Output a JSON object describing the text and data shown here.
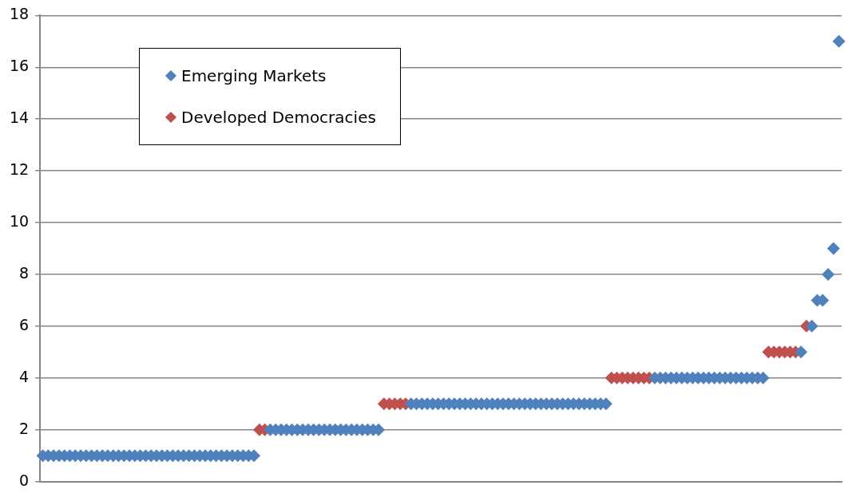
{
  "chart_data": {
    "type": "scatter",
    "categories": [
      null,
      null,
      null,
      null,
      null,
      null,
      null,
      null,
      null,
      null,
      null,
      null,
      null,
      null,
      null,
      null,
      null,
      null,
      null,
      null,
      null,
      null,
      null,
      null,
      null,
      null,
      null,
      null,
      null,
      null,
      null,
      null,
      null,
      null,
      null,
      null,
      null,
      null,
      null,
      null,
      null,
      null,
      null,
      null,
      null,
      null,
      null,
      null,
      null,
      null,
      null,
      null,
      null,
      null,
      null,
      null,
      null,
      null,
      null,
      null,
      null,
      null,
      null,
      null,
      null,
      null,
      null,
      null,
      null,
      null,
      null,
      null,
      null,
      null,
      null,
      null,
      null,
      null,
      null,
      null,
      null,
      null,
      null,
      null,
      null,
      null,
      null,
      null,
      null,
      null,
      null,
      null,
      null,
      null,
      null,
      null,
      null,
      null,
      null,
      null,
      null,
      null,
      null,
      null,
      null,
      null,
      null,
      null,
      null,
      null,
      null,
      null,
      null,
      null,
      null,
      null,
      null,
      null,
      null,
      null,
      null,
      null,
      null,
      null,
      null,
      null,
      null,
      null,
      null,
      null,
      null,
      null,
      null,
      null,
      null,
      null,
      null,
      null,
      null,
      null,
      null,
      null,
      null,
      null,
      null,
      null,
      null,
      null
    ],
    "series": [
      {
        "name": "Emerging Markets",
        "color": "#4f81bd",
        "values": [
          1,
          1,
          1,
          1,
          1,
          1,
          1,
          1,
          1,
          1,
          1,
          1,
          1,
          1,
          1,
          1,
          1,
          1,
          1,
          1,
          1,
          1,
          1,
          1,
          1,
          1,
          1,
          1,
          1,
          1,
          1,
          1,
          1,
          1,
          1,
          1,
          1,
          1,
          1,
          1,
          null,
          null,
          2,
          2,
          2,
          2,
          2,
          2,
          2,
          2,
          2,
          2,
          2,
          2,
          2,
          2,
          2,
          2,
          2,
          2,
          2,
          2,
          2,
          null,
          null,
          null,
          null,
          null,
          3,
          3,
          3,
          3,
          3,
          3,
          3,
          3,
          3,
          3,
          3,
          3,
          3,
          3,
          3,
          3,
          3,
          3,
          3,
          3,
          3,
          3,
          3,
          3,
          3,
          3,
          3,
          3,
          3,
          3,
          3,
          3,
          3,
          3,
          3,
          3,
          3,
          null,
          null,
          null,
          null,
          null,
          null,
          null,
          null,
          4,
          4,
          4,
          4,
          4,
          4,
          4,
          4,
          4,
          4,
          4,
          4,
          4,
          4,
          4,
          4,
          4,
          4,
          4,
          4,
          4,
          null,
          null,
          null,
          null,
          null,
          null,
          5,
          null,
          6,
          7,
          7,
          8,
          9,
          17
        ]
      },
      {
        "name": "Developed Democracies",
        "color": "#c0504d",
        "values": [
          null,
          null,
          null,
          null,
          null,
          null,
          null,
          null,
          null,
          null,
          null,
          null,
          null,
          null,
          null,
          null,
          null,
          null,
          null,
          null,
          null,
          null,
          null,
          null,
          null,
          null,
          null,
          null,
          null,
          null,
          null,
          null,
          null,
          null,
          null,
          null,
          null,
          null,
          null,
          null,
          2,
          2,
          null,
          null,
          null,
          null,
          null,
          null,
          null,
          null,
          null,
          null,
          null,
          null,
          null,
          null,
          null,
          null,
          null,
          null,
          null,
          null,
          null,
          3,
          3,
          3,
          3,
          3,
          null,
          null,
          null,
          null,
          null,
          null,
          null,
          null,
          null,
          null,
          null,
          null,
          null,
          null,
          null,
          null,
          null,
          null,
          null,
          null,
          null,
          null,
          null,
          null,
          null,
          null,
          null,
          null,
          null,
          null,
          null,
          null,
          null,
          null,
          null,
          null,
          null,
          4,
          4,
          4,
          4,
          4,
          4,
          4,
          4,
          null,
          null,
          null,
          null,
          null,
          null,
          null,
          null,
          null,
          null,
          null,
          null,
          null,
          null,
          null,
          null,
          null,
          null,
          null,
          null,
          null,
          5,
          5,
          5,
          5,
          5,
          5,
          null,
          6,
          null,
          null,
          null,
          null,
          null,
          null
        ]
      }
    ],
    "ylim": [
      0,
      18
    ],
    "yticks": [
      0,
      2,
      4,
      6,
      8,
      10,
      12,
      14,
      16,
      18
    ],
    "grid": "y",
    "legend": "top left",
    "marker": "diamond",
    "tick_labels": "y"
  }
}
